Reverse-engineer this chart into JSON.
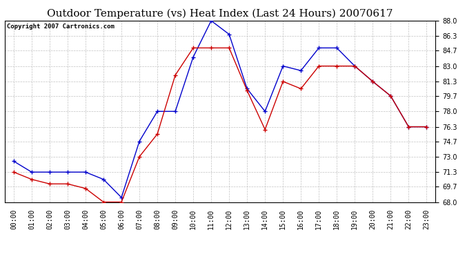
{
  "title": "Outdoor Temperature (vs) Heat Index (Last 24 Hours) 20070617",
  "copyright_text": "Copyright 2007 Cartronics.com",
  "x_labels": [
    "00:00",
    "01:00",
    "02:00",
    "03:00",
    "04:00",
    "05:00",
    "06:00",
    "07:00",
    "08:00",
    "09:00",
    "10:00",
    "11:00",
    "12:00",
    "13:00",
    "14:00",
    "15:00",
    "16:00",
    "17:00",
    "18:00",
    "19:00",
    "20:00",
    "21:00",
    "22:00",
    "23:00"
  ],
  "y_ticks": [
    68.0,
    69.7,
    71.3,
    73.0,
    74.7,
    76.3,
    78.0,
    79.7,
    81.3,
    83.0,
    84.7,
    86.3,
    88.0
  ],
  "ylim": [
    68.0,
    88.0
  ],
  "blue_line": [
    72.5,
    71.3,
    71.3,
    71.3,
    71.3,
    70.5,
    68.5,
    74.7,
    78.0,
    78.0,
    84.0,
    88.0,
    86.5,
    80.5,
    78.0,
    83.0,
    82.5,
    85.0,
    85.0,
    83.0,
    81.3,
    79.7,
    76.3,
    76.3
  ],
  "red_line": [
    71.3,
    70.5,
    70.0,
    70.0,
    69.5,
    68.0,
    68.0,
    73.0,
    75.5,
    82.0,
    85.0,
    85.0,
    85.0,
    80.3,
    76.0,
    81.3,
    80.5,
    83.0,
    83.0,
    83.0,
    81.3,
    79.7,
    76.3,
    76.3
  ],
  "blue_color": "#0000cc",
  "red_color": "#cc0000",
  "bg_color": "#ffffff",
  "grid_color": "#bbbbbb",
  "title_fontsize": 11,
  "copyright_fontsize": 6.5,
  "tick_fontsize": 7,
  "ytick_fontsize": 7
}
